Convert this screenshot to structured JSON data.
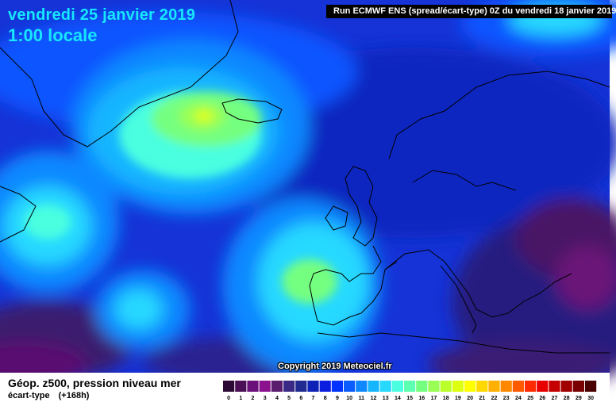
{
  "header": {
    "date": "vendredi 25 janvier 2019",
    "time": "1:00 locale",
    "run": "Run ECMWF ENS (spread/écart-type) 0Z du vendredi 18 janvier 2019"
  },
  "copyright": "Copyright 2019 Meteociel.fr",
  "footer": {
    "product": "Géop. z500, pression niveau mer",
    "subtitle": "écart-type",
    "lead": "(+168h)"
  },
  "legend": {
    "labels": [
      "0",
      "1",
      "2",
      "3",
      "4",
      "5",
      "6",
      "7",
      "8",
      "9",
      "10",
      "11",
      "12",
      "13",
      "14",
      "15",
      "16",
      "17",
      "18",
      "19",
      "20",
      "21",
      "22",
      "23",
      "24",
      "25",
      "26",
      "27",
      "28",
      "29",
      "30"
    ],
    "colors": [
      "#2c0a35",
      "#4a0f55",
      "#6b0f7a",
      "#8b118f",
      "#5a1c6e",
      "#3a2a85",
      "#202a90",
      "#0e22b8",
      "#0a1ee0",
      "#0033ff",
      "#0a5cff",
      "#0f88ff",
      "#16b6ff",
      "#27d9ff",
      "#4affe0",
      "#5dffb0",
      "#75ff80",
      "#99ff55",
      "#bbff2a",
      "#ddff10",
      "#ffff00",
      "#ffd800",
      "#ffb000",
      "#ff8800",
      "#ff5a00",
      "#ff2a00",
      "#e80000",
      "#c40000",
      "#a00000",
      "#780000",
      "#4a0000"
    ]
  }
}
